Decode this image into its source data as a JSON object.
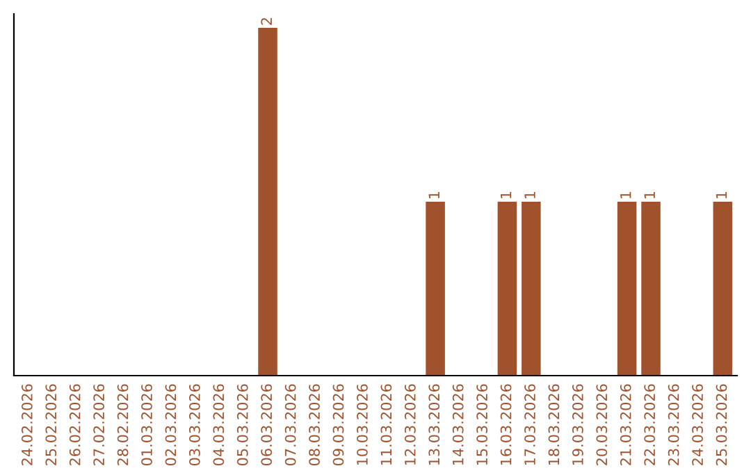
{
  "chart_data": {
    "type": "bar",
    "categories": [
      "24.02.2026",
      "25.02.2026",
      "26.02.2026",
      "27.02.2026",
      "28.02.2026",
      "01.03.2026",
      "02.03.2026",
      "03.03.2026",
      "04.03.2026",
      "05.03.2026",
      "06.03.2026",
      "07.03.2026",
      "08.03.2026",
      "09.03.2026",
      "10.03.2026",
      "11.03.2026",
      "12.03.2026",
      "13.03.2026",
      "14.03.2026",
      "15.03.2026",
      "16.03.2026",
      "17.03.2026",
      "18.03.2026",
      "19.03.2026",
      "20.03.2026",
      "21.03.2026",
      "22.03.2026",
      "23.03.2026",
      "24.03.2026",
      "25.03.2026"
    ],
    "values": [
      0,
      0,
      0,
      0,
      0,
      0,
      0,
      0,
      0,
      0,
      2,
      0,
      0,
      0,
      0,
      0,
      0,
      1,
      0,
      0,
      1,
      1,
      0,
      0,
      0,
      1,
      1,
      0,
      0,
      1
    ],
    "value_labels": [
      null,
      null,
      null,
      null,
      null,
      null,
      null,
      null,
      null,
      null,
      "2",
      null,
      null,
      null,
      null,
      null,
      null,
      "1",
      null,
      null,
      "1",
      "1",
      null,
      null,
      null,
      "1",
      "1",
      null,
      null,
      "1"
    ],
    "color": "#a0522d",
    "ylim": [
      0,
      2.08
    ],
    "tick_labels": "x",
    "grid": false,
    "legend": false
  }
}
